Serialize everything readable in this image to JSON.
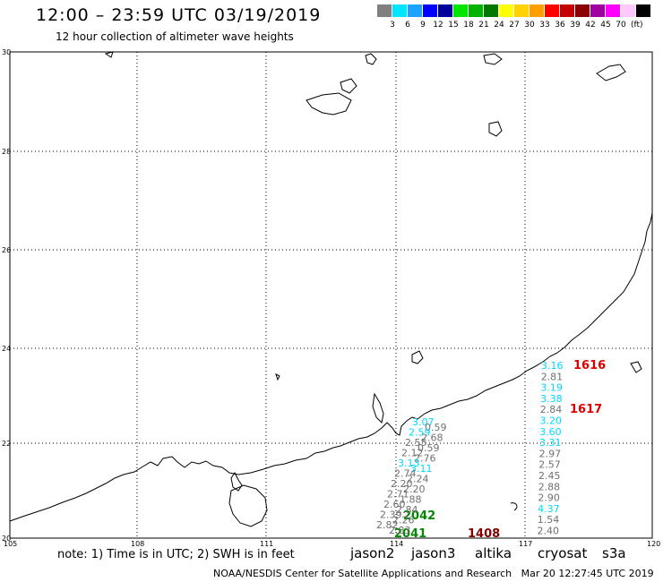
{
  "header": {
    "title": "12:00 – 23:59 UTC 03/19/2019",
    "subtitle": "12 hour collection of altimeter wave heights"
  },
  "legend": {
    "unit": "(ft)",
    "items": [
      {
        "color": "#808080",
        "label": ""
      },
      {
        "color": "#00e5ff",
        "label": "3"
      },
      {
        "color": "#1aa3ff",
        "label": "6"
      },
      {
        "color": "#0000ff",
        "label": "9"
      },
      {
        "color": "#00009a",
        "label": "12"
      },
      {
        "color": "#00e600",
        "label": "15"
      },
      {
        "color": "#00b400",
        "label": "18"
      },
      {
        "color": "#007800",
        "label": "21"
      },
      {
        "color": "#ffff00",
        "label": "24"
      },
      {
        "color": "#ffd200",
        "label": "27"
      },
      {
        "color": "#ffa000",
        "label": "30"
      },
      {
        "color": "#ff0000",
        "label": "33"
      },
      {
        "color": "#c80000",
        "label": "36"
      },
      {
        "color": "#8b0000",
        "label": "39"
      },
      {
        "color": "#a000a0",
        "label": "42"
      },
      {
        "color": "#ff00ff",
        "label": "45"
      },
      {
        "color": "#ffc8ff",
        "label": "70"
      },
      {
        "color": "#000000",
        "label": ""
      }
    ]
  },
  "axes": {
    "lat_labels": [
      "30",
      "28",
      "26",
      "24",
      "22",
      "20"
    ],
    "lon_labels": [
      "105",
      "108",
      "111",
      "114",
      "117",
      "120"
    ]
  },
  "tracks": {
    "track_a": [
      {
        "v": "3.07",
        "c": "#00d8ff"
      },
      {
        "v": "0.59",
        "c": "#707070"
      },
      {
        "v": "2.59",
        "c": "#00d8ff"
      },
      {
        "v": "2.68",
        "c": "#707070"
      },
      {
        "v": "2.55",
        "c": "#707070"
      },
      {
        "v": "0.59",
        "c": "#707070"
      },
      {
        "v": "2.12",
        "c": "#707070"
      },
      {
        "v": "2.76",
        "c": "#707070"
      },
      {
        "v": "3.13",
        "c": "#00d8ff"
      },
      {
        "v": "3.11",
        "c": "#00d8ff"
      },
      {
        "v": "2.74",
        "c": "#707070"
      },
      {
        "v": "2.24",
        "c": "#707070"
      },
      {
        "v": "2.20",
        "c": "#707070"
      },
      {
        "v": "2.20",
        "c": "#707070"
      },
      {
        "v": "2.71",
        "c": "#707070"
      },
      {
        "v": "1.88",
        "c": "#707070"
      },
      {
        "v": "2.60",
        "c": "#707070"
      },
      {
        "v": "2.84",
        "c": "#707070"
      },
      {
        "v": "2.39",
        "c": "#707070"
      },
      {
        "v": "2.26",
        "c": "#707070"
      },
      {
        "v": "2.82",
        "c": "#707070"
      },
      {
        "v": "2.83",
        "c": "#707070"
      }
    ],
    "track_b": [
      {
        "v": "3.16",
        "c": "#00d8ff"
      },
      {
        "v": "2.81",
        "c": "#707070"
      },
      {
        "v": "3.19",
        "c": "#00d8ff"
      },
      {
        "v": "3.38",
        "c": "#00d8ff"
      },
      {
        "v": "2.84",
        "c": "#707070"
      },
      {
        "v": "3.20",
        "c": "#00d8ff"
      },
      {
        "v": "3.60",
        "c": "#00d8ff"
      },
      {
        "v": "3.31",
        "c": "#00d8ff"
      },
      {
        "v": "2.97",
        "c": "#707070"
      },
      {
        "v": "2.57",
        "c": "#707070"
      },
      {
        "v": "2.45",
        "c": "#707070"
      },
      {
        "v": "2.88",
        "c": "#707070"
      },
      {
        "v": "2.90",
        "c": "#707070"
      },
      {
        "v": "4.37",
        "c": "#00d8ff"
      },
      {
        "v": "1.54",
        "c": "#707070"
      },
      {
        "v": "2.40",
        "c": "#707070"
      }
    ],
    "pass_labels": [
      {
        "v": "1616",
        "c": "#dd0000"
      },
      {
        "v": "1617",
        "c": "#dd0000"
      },
      {
        "v": "2042",
        "c": "#008800"
      },
      {
        "v": "2041",
        "c": "#008800"
      },
      {
        "v": "1408",
        "c": "#800000"
      }
    ]
  },
  "footer": {
    "note": "note: 1) Time is in UTC; 2) SWH is in feet",
    "satellites": [
      {
        "name": "jason2",
        "color": "#0000ff"
      },
      {
        "name": "jason3",
        "color": "#00aa00"
      },
      {
        "name": "altika",
        "color": "#ff9900"
      },
      {
        "name": "cryosat",
        "color": "#ff0000"
      },
      {
        "name": "s3a",
        "color": "#b00000"
      }
    ],
    "credit": "NOAA/NESDIS Center for Satellite Applications and Research",
    "timestamp": "Mar 20 12:27:45 UTC 2019"
  }
}
